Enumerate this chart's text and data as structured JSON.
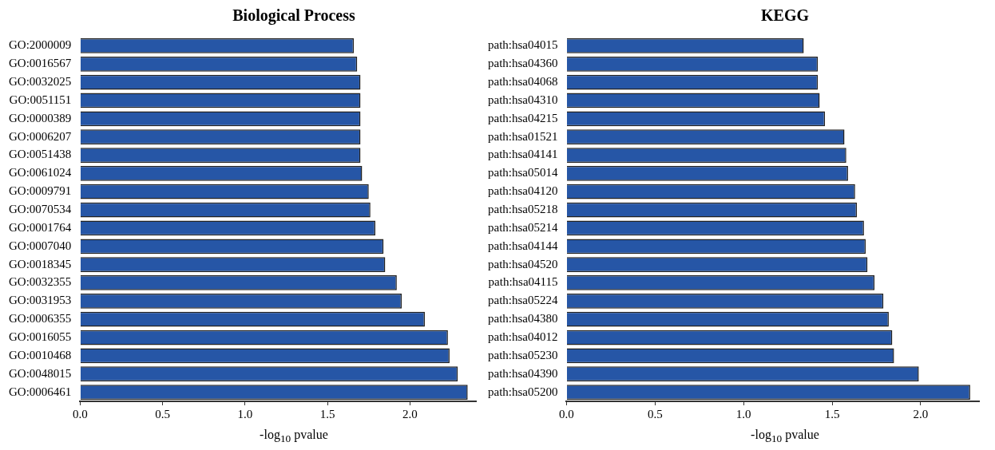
{
  "chart_data": [
    {
      "type": "bar",
      "orientation": "horizontal",
      "title": "Biological Process",
      "xlabel": "-log$_{10}$ pvalue",
      "categories": [
        "GO:2000009",
        "GO:0016567",
        "GO:0032025",
        "GO:0051151",
        "GO:0000389",
        "GO:0006207",
        "GO:0051438",
        "GO:0061024",
        "GO:0009791",
        "GO:0070534",
        "GO:0001764",
        "GO:0007040",
        "GO:0018345",
        "GO:0032355",
        "GO:0031953",
        "GO:0006355",
        "GO:0016055",
        "GO:0010468",
        "GO:0048015",
        "GO:0006461"
      ],
      "values": [
        1.66,
        1.68,
        1.7,
        1.7,
        1.7,
        1.7,
        1.7,
        1.71,
        1.75,
        1.76,
        1.79,
        1.84,
        1.85,
        1.92,
        1.95,
        2.09,
        2.23,
        2.24,
        2.29,
        2.35
      ],
      "color": "#2656a6",
      "xlim": [
        0,
        2.4
      ],
      "xticks": [
        {
          "value": 0,
          "label": "0.0"
        },
        {
          "value": 0.5,
          "label": "0.5"
        },
        {
          "value": 1,
          "label": "1.0"
        },
        {
          "value": 1.5,
          "label": "1.5"
        },
        {
          "value": 2,
          "label": "2.0"
        }
      ],
      "grid": false,
      "legend": false
    },
    {
      "type": "bar",
      "orientation": "horizontal",
      "title": "KEGG",
      "xlabel": "-log$_{10}$ pvalue",
      "categories": [
        "path:hsa04015",
        "path:hsa04360",
        "path:hsa04068",
        "path:hsa04310",
        "path:hsa04215",
        "path:hsa01521",
        "path:hsa04141",
        "path:hsa05014",
        "path:hsa04120",
        "path:hsa05218",
        "path:hsa05214",
        "path:hsa04144",
        "path:hsa04520",
        "path:hsa04115",
        "path:hsa05224",
        "path:hsa04380",
        "path:hsa04012",
        "path:hsa05230",
        "path:hsa04390",
        "path:hsa05200"
      ],
      "values": [
        1.34,
        1.42,
        1.42,
        1.43,
        1.46,
        1.57,
        1.58,
        1.59,
        1.63,
        1.64,
        1.68,
        1.69,
        1.7,
        1.74,
        1.79,
        1.82,
        1.84,
        1.85,
        1.99,
        2.28
      ],
      "color": "#2656a6",
      "xlim": [
        0,
        2.33
      ],
      "xticks": [
        {
          "value": 0,
          "label": "0.0"
        },
        {
          "value": 0.5,
          "label": "0.5"
        },
        {
          "value": 1,
          "label": "1.0"
        },
        {
          "value": 1.5,
          "label": "1.5"
        },
        {
          "value": 2,
          "label": "2.0"
        }
      ],
      "grid": false,
      "legend": false
    }
  ]
}
